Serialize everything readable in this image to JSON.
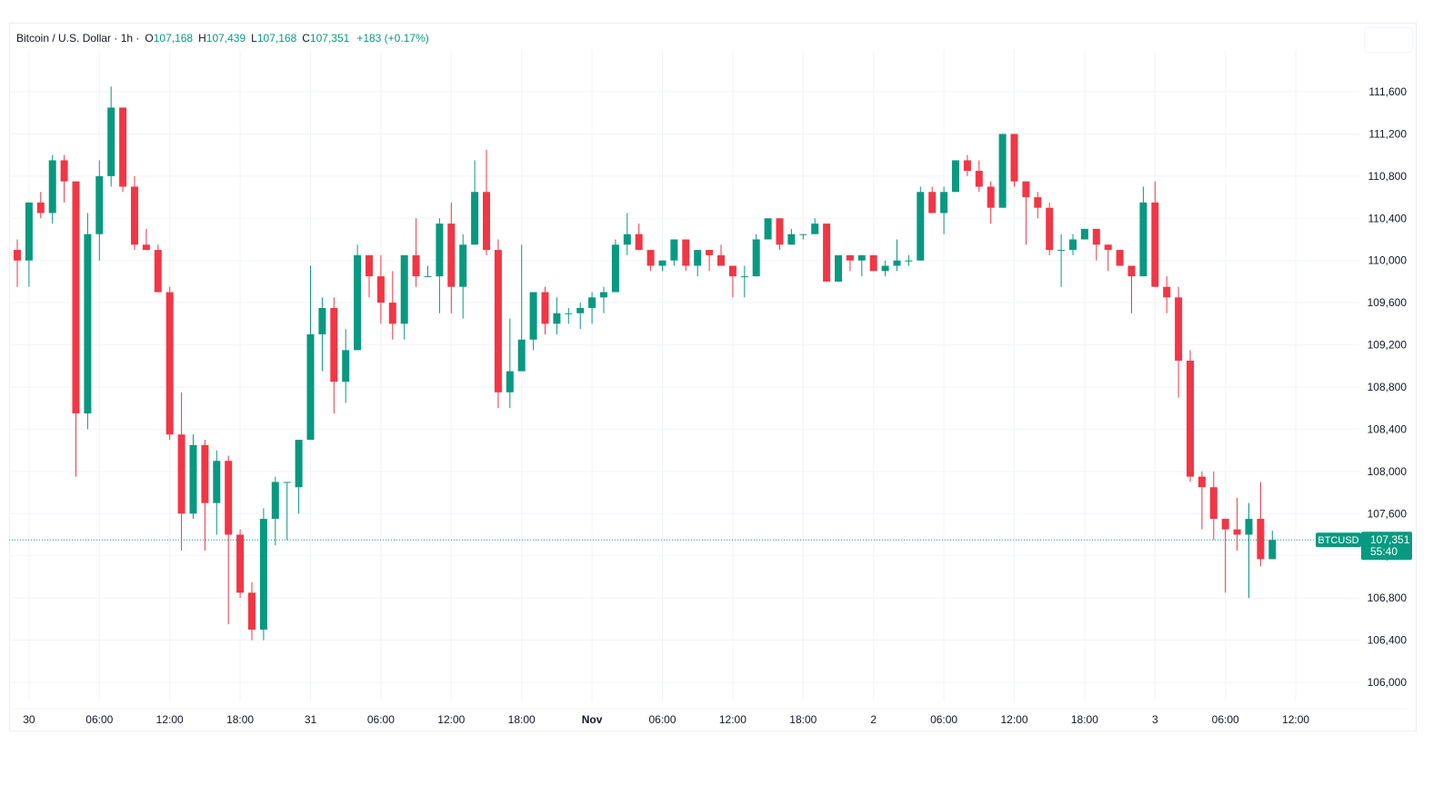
{
  "colors": {
    "up": "#089981",
    "down": "#F23645",
    "grid": "#F0F3FA",
    "text": "#131722",
    "price_line": "#089981"
  },
  "legend": {
    "symbol": "Bitcoin / U.S. Dollar · 1h ·",
    "open_label": "O",
    "open": "107,168",
    "high_label": "H",
    "high": "107,439",
    "low_label": "L",
    "low": "107,168",
    "close_label": "C",
    "close": "107,351",
    "change": "+183 (+0.17%)"
  },
  "price_tag": {
    "symbol": "BTCUSD",
    "price": "107,351",
    "countdown": "55:40"
  },
  "chart_data": {
    "type": "candlestick",
    "title": "Bitcoin / U.S. Dollar · 1h",
    "y_axis": {
      "range": [
        105700,
        112000
      ],
      "ticks": [
        "106,000",
        "106,400",
        "106,800",
        "107,200",
        "107,600",
        "108,000",
        "108,400",
        "108,800",
        "109,200",
        "109,600",
        "110,000",
        "110,400",
        "110,800",
        "111,200",
        "111,600"
      ],
      "tick_values": [
        106000,
        106400,
        106800,
        107200,
        107600,
        108000,
        108400,
        108800,
        109200,
        109600,
        110000,
        110400,
        110800,
        111200,
        111600
      ]
    },
    "x_axis": {
      "labels": [
        "30",
        "06:00",
        "12:00",
        "18:00",
        "31",
        "06:00",
        "12:00",
        "18:00",
        "Nov",
        "06:00",
        "12:00",
        "18:00",
        "2",
        "06:00",
        "12:00",
        "18:00",
        "3",
        "06:00",
        "12:00"
      ],
      "label_bar_index": [
        1,
        7,
        13,
        19,
        25,
        31,
        37,
        43,
        49,
        55,
        61,
        67,
        73,
        79,
        85,
        91,
        97,
        103,
        109
      ],
      "bold_labels": [
        "Nov"
      ]
    },
    "last_price": 107351,
    "candles": [
      {
        "o": 110100,
        "h": 110200,
        "l": 109750,
        "c": 110000
      },
      {
        "o": 110000,
        "h": 110550,
        "l": 109750,
        "c": 110550
      },
      {
        "o": 110550,
        "h": 110650,
        "l": 110400,
        "c": 110450
      },
      {
        "o": 110450,
        "h": 111000,
        "l": 110350,
        "c": 110950
      },
      {
        "o": 110950,
        "h": 111000,
        "l": 110550,
        "c": 110750
      },
      {
        "o": 110750,
        "h": 110750,
        "l": 107950,
        "c": 108550
      },
      {
        "o": 108550,
        "h": 110450,
        "l": 108400,
        "c": 110250
      },
      {
        "o": 110250,
        "h": 110950,
        "l": 110000,
        "c": 110800
      },
      {
        "o": 110800,
        "h": 111650,
        "l": 110700,
        "c": 111450
      },
      {
        "o": 111450,
        "h": 111450,
        "l": 110650,
        "c": 110700
      },
      {
        "o": 110700,
        "h": 110800,
        "l": 110100,
        "c": 110150
      },
      {
        "o": 110150,
        "h": 110300,
        "l": 110100,
        "c": 110100
      },
      {
        "o": 110100,
        "h": 110150,
        "l": 109700,
        "c": 109700
      },
      {
        "o": 109700,
        "h": 109750,
        "l": 108300,
        "c": 108350
      },
      {
        "o": 108350,
        "h": 108750,
        "l": 107250,
        "c": 107600
      },
      {
        "o": 107600,
        "h": 108350,
        "l": 107550,
        "c": 108250
      },
      {
        "o": 108250,
        "h": 108300,
        "l": 107250,
        "c": 107700
      },
      {
        "o": 107700,
        "h": 108200,
        "l": 107400,
        "c": 108100
      },
      {
        "o": 108100,
        "h": 108150,
        "l": 106550,
        "c": 107400
      },
      {
        "o": 107400,
        "h": 107450,
        "l": 106800,
        "c": 106850
      },
      {
        "o": 106850,
        "h": 106950,
        "l": 106400,
        "c": 106500
      },
      {
        "o": 106500,
        "h": 107650,
        "l": 106400,
        "c": 107550
      },
      {
        "o": 107550,
        "h": 107950,
        "l": 107300,
        "c": 107900
      },
      {
        "o": 107900,
        "h": 107900,
        "l": 107350,
        "c": 107900
      },
      {
        "o": 107850,
        "h": 108300,
        "l": 107600,
        "c": 108300
      },
      {
        "o": 108300,
        "h": 109950,
        "l": 108300,
        "c": 109300
      },
      {
        "o": 109300,
        "h": 109650,
        "l": 108950,
        "c": 109550
      },
      {
        "o": 109550,
        "h": 109650,
        "l": 108550,
        "c": 108850
      },
      {
        "o": 108850,
        "h": 109350,
        "l": 108650,
        "c": 109150
      },
      {
        "o": 109150,
        "h": 110150,
        "l": 109150,
        "c": 110050
      },
      {
        "o": 110050,
        "h": 110050,
        "l": 109650,
        "c": 109850
      },
      {
        "o": 109850,
        "h": 110050,
        "l": 109400,
        "c": 109600
      },
      {
        "o": 109600,
        "h": 109900,
        "l": 109250,
        "c": 109400
      },
      {
        "o": 109400,
        "h": 110050,
        "l": 109250,
        "c": 110050
      },
      {
        "o": 110050,
        "h": 110400,
        "l": 109750,
        "c": 109850
      },
      {
        "o": 109850,
        "h": 109950,
        "l": 109850,
        "c": 109850
      },
      {
        "o": 109850,
        "h": 110400,
        "l": 109500,
        "c": 110350
      },
      {
        "o": 110350,
        "h": 110550,
        "l": 109500,
        "c": 109750
      },
      {
        "o": 109750,
        "h": 110250,
        "l": 109450,
        "c": 110150
      },
      {
        "o": 110150,
        "h": 110950,
        "l": 110150,
        "c": 110650
      },
      {
        "o": 110650,
        "h": 111050,
        "l": 110050,
        "c": 110100
      },
      {
        "o": 110100,
        "h": 110200,
        "l": 108600,
        "c": 108750
      },
      {
        "o": 108750,
        "h": 109450,
        "l": 108600,
        "c": 108950
      },
      {
        "o": 108950,
        "h": 110150,
        "l": 109000,
        "c": 109250
      },
      {
        "o": 109250,
        "h": 109700,
        "l": 109150,
        "c": 109700
      },
      {
        "o": 109700,
        "h": 109750,
        "l": 109300,
        "c": 109400
      },
      {
        "o": 109400,
        "h": 109650,
        "l": 109300,
        "c": 109500
      },
      {
        "o": 109500,
        "h": 109550,
        "l": 109400,
        "c": 109500
      },
      {
        "o": 109500,
        "h": 109600,
        "l": 109350,
        "c": 109550
      },
      {
        "o": 109550,
        "h": 109700,
        "l": 109400,
        "c": 109650
      },
      {
        "o": 109650,
        "h": 109750,
        "l": 109500,
        "c": 109700
      },
      {
        "o": 109700,
        "h": 110200,
        "l": 109700,
        "c": 110150
      },
      {
        "o": 110150,
        "h": 110450,
        "l": 110050,
        "c": 110250
      },
      {
        "o": 110250,
        "h": 110350,
        "l": 110100,
        "c": 110100
      },
      {
        "o": 110100,
        "h": 110100,
        "l": 109900,
        "c": 109950
      },
      {
        "o": 109950,
        "h": 110000,
        "l": 109900,
        "c": 110000
      },
      {
        "o": 110000,
        "h": 110200,
        "l": 109950,
        "c": 110200
      },
      {
        "o": 110200,
        "h": 110200,
        "l": 109900,
        "c": 109950
      },
      {
        "o": 109950,
        "h": 110100,
        "l": 109850,
        "c": 110100
      },
      {
        "o": 110100,
        "h": 110100,
        "l": 109900,
        "c": 110050
      },
      {
        "o": 110050,
        "h": 110150,
        "l": 109950,
        "c": 109950
      },
      {
        "o": 109950,
        "h": 109950,
        "l": 109650,
        "c": 109850
      },
      {
        "o": 109850,
        "h": 109950,
        "l": 109650,
        "c": 109850
      },
      {
        "o": 109850,
        "h": 110250,
        "l": 109850,
        "c": 110200
      },
      {
        "o": 110200,
        "h": 110400,
        "l": 110200,
        "c": 110400
      },
      {
        "o": 110400,
        "h": 110400,
        "l": 110100,
        "c": 110150
      },
      {
        "o": 110150,
        "h": 110300,
        "l": 110150,
        "c": 110250
      },
      {
        "o": 110250,
        "h": 110250,
        "l": 110200,
        "c": 110250
      },
      {
        "o": 110250,
        "h": 110400,
        "l": 110250,
        "c": 110350
      },
      {
        "o": 110350,
        "h": 110350,
        "l": 109800,
        "c": 109800
      },
      {
        "o": 109800,
        "h": 110050,
        "l": 109800,
        "c": 110050
      },
      {
        "o": 110050,
        "h": 110050,
        "l": 109900,
        "c": 110000
      },
      {
        "o": 110000,
        "h": 110050,
        "l": 109850,
        "c": 110050
      },
      {
        "o": 110050,
        "h": 110050,
        "l": 109900,
        "c": 109900
      },
      {
        "o": 109900,
        "h": 110000,
        "l": 109850,
        "c": 109950
      },
      {
        "o": 109950,
        "h": 110200,
        "l": 109900,
        "c": 110000
      },
      {
        "o": 110000,
        "h": 110050,
        "l": 109950,
        "c": 110000
      },
      {
        "o": 110000,
        "h": 110700,
        "l": 110000,
        "c": 110650
      },
      {
        "o": 110650,
        "h": 110700,
        "l": 110450,
        "c": 110450
      },
      {
        "o": 110450,
        "h": 110700,
        "l": 110250,
        "c": 110650
      },
      {
        "o": 110650,
        "h": 110950,
        "l": 110650,
        "c": 110950
      },
      {
        "o": 110950,
        "h": 111000,
        "l": 110800,
        "c": 110850
      },
      {
        "o": 110850,
        "h": 110950,
        "l": 110650,
        "c": 110700
      },
      {
        "o": 110700,
        "h": 110750,
        "l": 110350,
        "c": 110500
      },
      {
        "o": 110500,
        "h": 111200,
        "l": 110500,
        "c": 111200
      },
      {
        "o": 111200,
        "h": 111200,
        "l": 110700,
        "c": 110750
      },
      {
        "o": 110750,
        "h": 110750,
        "l": 110150,
        "c": 110600
      },
      {
        "o": 110600,
        "h": 110650,
        "l": 110400,
        "c": 110500
      },
      {
        "o": 110500,
        "h": 110550,
        "l": 110050,
        "c": 110100
      },
      {
        "o": 110100,
        "h": 110250,
        "l": 109750,
        "c": 110100
      },
      {
        "o": 110100,
        "h": 110250,
        "l": 110050,
        "c": 110200
      },
      {
        "o": 110200,
        "h": 110300,
        "l": 110200,
        "c": 110300
      },
      {
        "o": 110300,
        "h": 110300,
        "l": 110000,
        "c": 110150
      },
      {
        "o": 110150,
        "h": 110150,
        "l": 109900,
        "c": 110100
      },
      {
        "o": 110100,
        "h": 110100,
        "l": 109950,
        "c": 109950
      },
      {
        "o": 109950,
        "h": 109950,
        "l": 109500,
        "c": 109850
      },
      {
        "o": 109850,
        "h": 110700,
        "l": 109850,
        "c": 110550
      },
      {
        "o": 110550,
        "h": 110750,
        "l": 109750,
        "c": 109750
      },
      {
        "o": 109750,
        "h": 109850,
        "l": 109500,
        "c": 109650
      },
      {
        "o": 109650,
        "h": 109750,
        "l": 108700,
        "c": 109050
      },
      {
        "o": 109050,
        "h": 109150,
        "l": 107900,
        "c": 107950
      },
      {
        "o": 107950,
        "h": 108000,
        "l": 107450,
        "c": 107850
      },
      {
        "o": 107850,
        "h": 108000,
        "l": 107350,
        "c": 107550
      },
      {
        "o": 107550,
        "h": 107550,
        "l": 106850,
        "c": 107450
      },
      {
        "o": 107450,
        "h": 107750,
        "l": 107250,
        "c": 107400
      },
      {
        "o": 107400,
        "h": 107700,
        "l": 106800,
        "c": 107550
      },
      {
        "o": 107550,
        "h": 107900,
        "l": 107100,
        "c": 107168
      },
      {
        "o": 107168,
        "h": 107439,
        "l": 107168,
        "c": 107351
      }
    ]
  }
}
